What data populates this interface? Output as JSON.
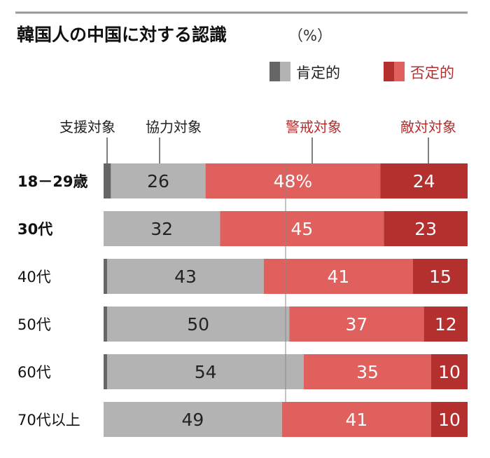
{
  "chart_data": {
    "type": "bar",
    "orientation": "horizontal",
    "stacked": true,
    "title": "韓国人の中国に対する認識",
    "unit": "（%）",
    "legend": [
      {
        "label": "肯定的",
        "colors": [
          "#666666",
          "#b3b3b3"
        ],
        "text_color": "#222222"
      },
      {
        "label": "否定的",
        "colors": [
          "#b3302f",
          "#e0605e"
        ],
        "text_color": "#b3302f"
      }
    ],
    "legend_placement": "top-right",
    "categories": [
      "18－29歳",
      "30代",
      "40代",
      "50代",
      "60代",
      "70代以上"
    ],
    "bold_categories": [
      true,
      true,
      false,
      false,
      false,
      false
    ],
    "series": [
      {
        "name": "支援対象",
        "color": "#666666",
        "values": [
          2,
          0,
          1,
          1,
          1,
          0
        ],
        "labels": [
          "",
          "",
          "",
          "",
          "",
          ""
        ],
        "name_color": "#222222"
      },
      {
        "name": "協力対象",
        "color": "#b3b3b3",
        "values": [
          26,
          32,
          43,
          50,
          54,
          49
        ],
        "labels": [
          "26",
          "32",
          "43",
          "50",
          "54",
          "49"
        ],
        "name_color": "#222222",
        "label_color": "#222222"
      },
      {
        "name": "警戒対象",
        "color": "#e0605e",
        "values": [
          48,
          45,
          41,
          37,
          35,
          41
        ],
        "labels": [
          "48%",
          "45",
          "41",
          "37",
          "35",
          "41"
        ],
        "name_color": "#b3302f",
        "label_color": "#ffffff"
      },
      {
        "name": "敵対対象",
        "color": "#b3302f",
        "values": [
          24,
          23,
          15,
          12,
          10,
          10
        ],
        "labels": [
          "24",
          "23",
          "15",
          "12",
          "10",
          "10"
        ],
        "name_color": "#b3302f",
        "label_color": "#ffffff"
      }
    ],
    "xlim": [
      0,
      100
    ],
    "reference_line": 50,
    "grid": false
  }
}
